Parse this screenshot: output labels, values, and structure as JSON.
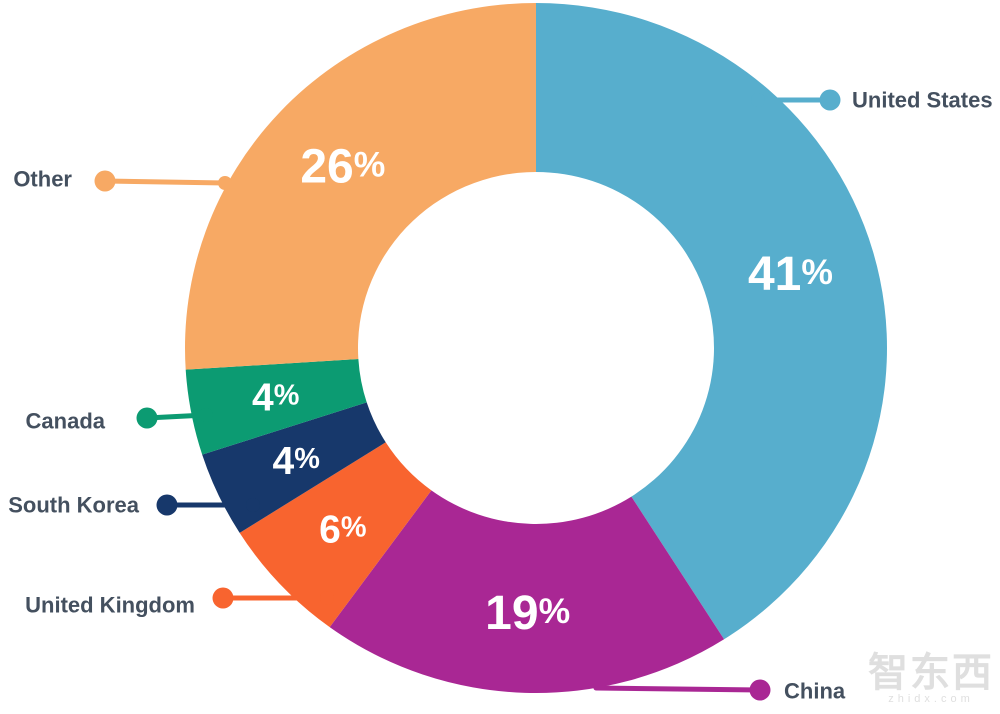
{
  "chart_data": {
    "type": "pie",
    "subtype": "donut",
    "title": "",
    "units": "percent",
    "start_angle": "top",
    "direction": "clockwise",
    "slice_label_color": "#FFFFFF",
    "category_label_color": "#44505F",
    "series": [
      {
        "name": "United States",
        "value": 41,
        "color": "#57AECD"
      },
      {
        "name": "China",
        "value": 19,
        "color": "#A92794"
      },
      {
        "name": "United Kingdom",
        "value": 6,
        "color": "#F8642F"
      },
      {
        "name": "South Korea",
        "value": 4,
        "color": "#17386B"
      },
      {
        "name": "Canada",
        "value": 4,
        "color": "#0C9B72"
      },
      {
        "name": "Other",
        "value": 26,
        "color": "#F7A964"
      }
    ]
  },
  "watermark": {
    "text": "智东西",
    "subtext": "zhidx.com"
  }
}
